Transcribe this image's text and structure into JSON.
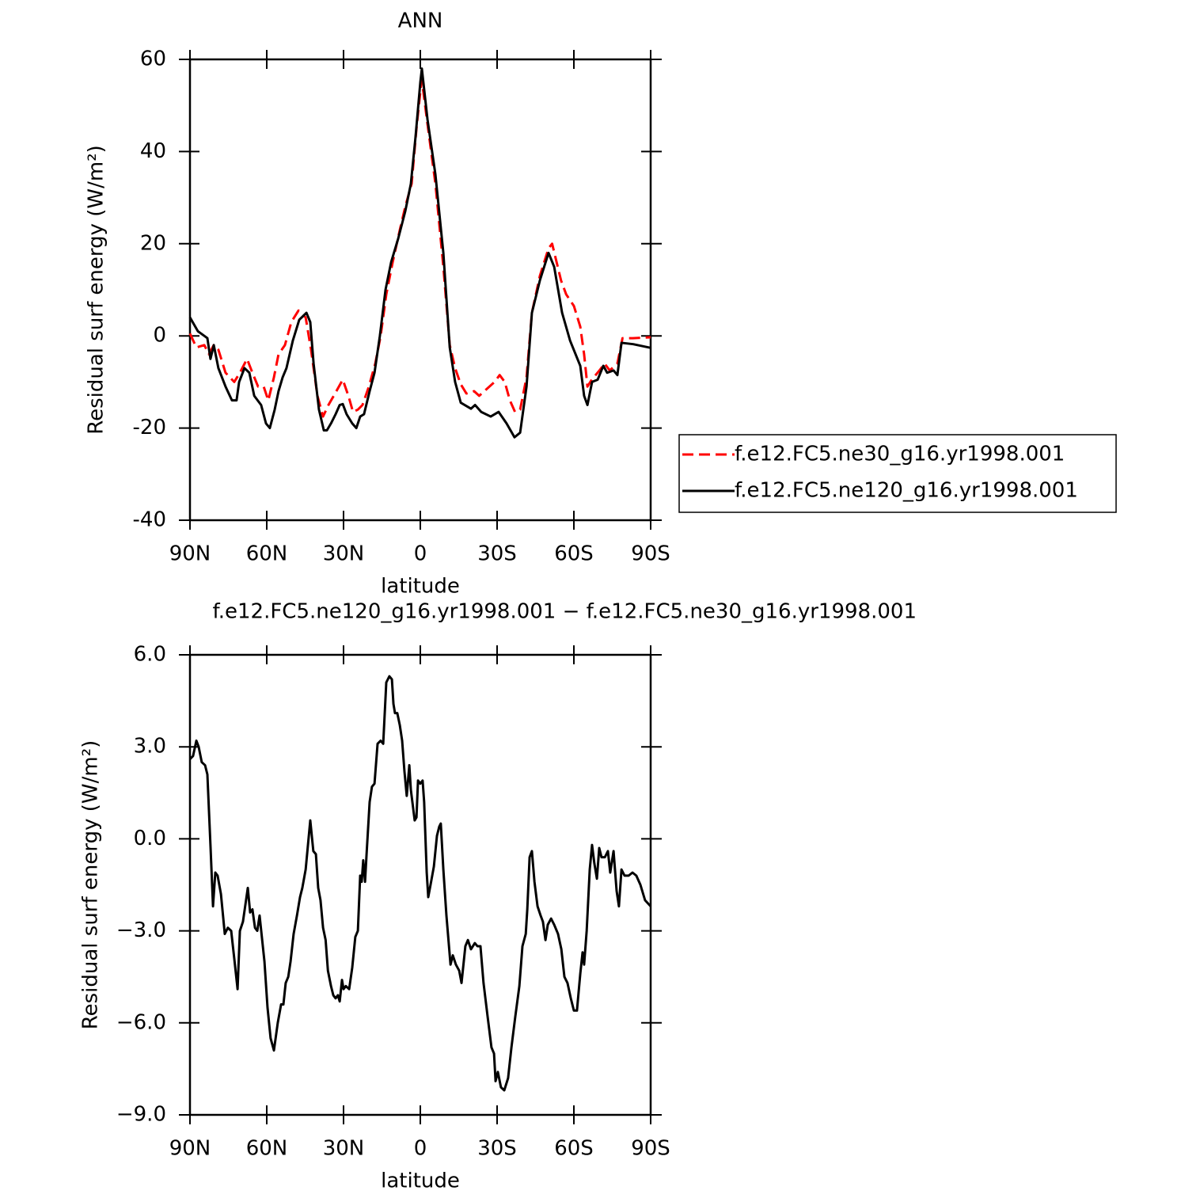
{
  "chart_data": [
    {
      "type": "line",
      "title": "ANN",
      "xlabel": "latitude",
      "ylabel": "Residual surf energy (W/m²)",
      "xlim": [
        90,
        -90
      ],
      "ylim": [
        -40,
        60
      ],
      "xticks": [
        {
          "value": 90,
          "label": "90N"
        },
        {
          "value": 60,
          "label": "60N"
        },
        {
          "value": 30,
          "label": "30N"
        },
        0,
        {
          "value": -30,
          "label": "30S"
        },
        {
          "value": -60,
          "label": "60S"
        },
        {
          "value": -90,
          "label": "90S"
        }
      ],
      "yticks": [
        -40,
        -20,
        0,
        20,
        40,
        60
      ],
      "legend": "right",
      "series": [
        {
          "name": "f.e12.FC5.ne30_g16.yr1998.001",
          "color": "#ff0000",
          "dash": "dashed",
          "x": [
            90,
            87.5,
            84.4,
            82.6,
            80.7,
            78.9,
            76.1,
            72.7,
            70.5,
            67.7,
            65.6,
            63.4,
            61.2,
            59.4,
            57.2,
            55.4,
            52.9,
            50.4,
            47.6,
            44.8,
            42.7,
            40.2,
            38,
            35.9,
            32.8,
            30.3,
            28.1,
            26.3,
            24.4,
            22.6,
            20.1,
            17.6,
            15.5,
            13.3,
            10.8,
            8,
            5.9,
            3.4,
            1.5,
            0,
            -0.6,
            -2.8,
            -5.9,
            -9,
            -11.5,
            -13.6,
            -15.8,
            -18,
            -21,
            -23,
            -26,
            -29,
            -31,
            -33,
            -35,
            -37,
            -39,
            -41.5,
            -43.6,
            -46.7,
            -50.1,
            -51.5,
            -55,
            -57,
            -60,
            -62.5,
            -64,
            -65.3,
            -67,
            -70,
            -72,
            -74,
            -77,
            -79,
            -83,
            -90
          ],
          "values": [
            0.5,
            -2.5,
            -2,
            -4,
            -2,
            -3,
            -8,
            -10,
            -8,
            -5,
            -8,
            -11,
            -11,
            -14,
            -9,
            -4,
            -2,
            3,
            5.5,
            4,
            -3,
            -13,
            -17.5,
            -15,
            -12,
            -9.5,
            -13,
            -16.5,
            -16,
            -15,
            -11,
            -6,
            0,
            9,
            16,
            23,
            28,
            33,
            45,
            53,
            55.5,
            46,
            33,
            15,
            -2,
            -7,
            -10.5,
            -12.5,
            -12,
            -13,
            -11.5,
            -10,
            -8.5,
            -10,
            -14,
            -16.5,
            -16,
            -9,
            5,
            13,
            19,
            20,
            12,
            9,
            6.5,
            2,
            -4,
            -11,
            -9.5,
            -7.5,
            -6,
            -7.5,
            -6,
            -0.5,
            -0.5,
            -0.3
          ]
        },
        {
          "name": "f.e12.FC5.ne120_g16.yr1998.001",
          "color": "#000000",
          "dash": "solid",
          "x": [
            90,
            86.9,
            84.4,
            83.2,
            82,
            80.7,
            78.9,
            76.1,
            73.6,
            71.8,
            70.8,
            68.7,
            66.8,
            64.9,
            62.2,
            60.3,
            58.8,
            56.9,
            55.4,
            53.8,
            52.3,
            49.8,
            47.3,
            44.5,
            43,
            41.7,
            39.6,
            37.7,
            36.5,
            34.9,
            33.1,
            31.5,
            30.3,
            28.8,
            26.6,
            25,
            23.5,
            22,
            19.8,
            17.9,
            15.8,
            13.6,
            11.4,
            8.7,
            5.9,
            3.7,
            1.9,
            0,
            -0.6,
            -2.8,
            -5.9,
            -9,
            -11.5,
            -13.6,
            -15.8,
            -19.8,
            -21.4,
            -23.8,
            -27.5,
            -30.6,
            -33.7,
            -36.8,
            -39,
            -41.5,
            -43.6,
            -46.7,
            -50.1,
            -52.3,
            -55.4,
            -58.5,
            -62.5,
            -64,
            -65.3,
            -67.1,
            -69.3,
            -71.5,
            -73,
            -75.5,
            -77,
            -78.6,
            -83.2,
            -90
          ],
          "values": [
            4,
            1,
            0,
            -0.5,
            -5,
            -2,
            -7,
            -11,
            -14,
            -14,
            -10,
            -7,
            -8,
            -13,
            -15,
            -19,
            -20,
            -16,
            -12,
            -9,
            -7,
            -1,
            3.5,
            5,
            3,
            -6,
            -16,
            -20.5,
            -20.5,
            -19,
            -17,
            -15,
            -14.8,
            -17,
            -19,
            -20,
            -17.5,
            -17,
            -12,
            -8,
            0,
            10,
            16,
            21,
            27,
            33,
            43,
            55,
            58,
            47,
            35,
            18,
            -2.5,
            -10,
            -14.5,
            -15.8,
            -15,
            -16.5,
            -17.5,
            -16.5,
            -19,
            -22,
            -21,
            -11,
            5,
            12,
            18,
            15,
            5,
            -1,
            -6.5,
            -13,
            -15,
            -10,
            -9.5,
            -6.5,
            -8,
            -7.5,
            -8.5,
            -1.5,
            -1.8,
            -2.6
          ]
        }
      ]
    },
    {
      "type": "line",
      "title": "f.e12.FC5.ne120_g16.yr1998.001 − f.e12.FC5.ne30_g16.yr1998.001",
      "xlabel": "latitude",
      "ylabel": "Residual surf energy (W/m²)",
      "xlim": [
        90,
        -90
      ],
      "ylim": [
        -9,
        6
      ],
      "xticks": [
        {
          "value": 90,
          "label": "90N"
        },
        {
          "value": 60,
          "label": "60N"
        },
        {
          "value": 30,
          "label": "30N"
        },
        0,
        {
          "value": -30,
          "label": "30S"
        },
        {
          "value": -60,
          "label": "60S"
        },
        {
          "value": -90,
          "label": "90S"
        }
      ],
      "yticks": [
        {
          "value": -9,
          "label": "−9.0"
        },
        {
          "value": -6,
          "label": "−6.0"
        },
        {
          "value": -3,
          "label": "−3.0"
        },
        {
          "value": 0,
          "label": "0.0"
        },
        {
          "value": 3,
          "label": "3.0"
        },
        {
          "value": 6,
          "label": "6.0"
        }
      ],
      "color": "#000000",
      "x": [
        90,
        88.8,
        87.5,
        86.6,
        85.4,
        84.1,
        83.2,
        82,
        81,
        80.1,
        79.2,
        77.9,
        76.4,
        75.2,
        73.9,
        72.7,
        71.4,
        70.5,
        69.3,
        67.4,
        66.5,
        65.6,
        64.6,
        63.7,
        62.8,
        60.9,
        59.7,
        58.5,
        57.2,
        55.7,
        54.4,
        53.5,
        52.6,
        51.6,
        50.7,
        49.5,
        48.2,
        47,
        46.1,
        44.8,
        43,
        41.8,
        40.8,
        39.9,
        39,
        38,
        37,
        36.1,
        34.9,
        34,
        33.1,
        32.2,
        31.5,
        30.6,
        30,
        29.1,
        27.8,
        26.6,
        25.4,
        24.4,
        23.5,
        22.9,
        22.3,
        21.6,
        21,
        19.8,
        18.9,
        17.9,
        16.7,
        15.5,
        14.5,
        13.9,
        13.3,
        12.1,
        11.1,
        10.5,
        9.9,
        9,
        8,
        7.1,
        6.2,
        5.3,
        4.3,
        3.7,
        2.8,
        2.2,
        1.5,
        0.9,
        0,
        -0.9,
        -1.5,
        -2.5,
        -3.1,
        -4,
        -5.3,
        -6.5,
        -7.4,
        -8,
        -9,
        -10.2,
        -11.8,
        -12.7,
        -13.9,
        -15.2,
        -16.1,
        -17.6,
        -18.6,
        -19.8,
        -21.3,
        -22.3,
        -23.5,
        -24.7,
        -26.3,
        -27.8,
        -28.8,
        -29.4,
        -30.3,
        -31.5,
        -32.8,
        -34.3,
        -35.6,
        -37.1,
        -38.7,
        -39.9,
        -41.2,
        -41.8,
        -42.7,
        -43.6,
        -44.6,
        -45.8,
        -47,
        -47.9,
        -48.9,
        -49.8,
        -51.1,
        -52.3,
        -53.8,
        -55.1,
        -56.3,
        -57.5,
        -58.8,
        -60,
        -61.2,
        -62.5,
        -63.4,
        -64,
        -65,
        -66.2,
        -67.1,
        -68,
        -69,
        -69.9,
        -70.8,
        -72.1,
        -73.3,
        -74.2,
        -75.5,
        -76.7,
        -77.6,
        -78.6,
        -79.8,
        -81.4,
        -82.9,
        -84.4,
        -86,
        -87.8,
        -90
      ],
      "values": [
        2.6,
        2.7,
        3.2,
        3,
        2.5,
        2.4,
        2.1,
        -0.2,
        -2.2,
        -1.1,
        -1.2,
        -1.8,
        -3.1,
        -2.9,
        -3,
        -3.9,
        -4.9,
        -3,
        -2.7,
        -1.6,
        -2.4,
        -2.3,
        -2.9,
        -3,
        -2.5,
        -4,
        -5.5,
        -6.5,
        -6.9,
        -6,
        -5.4,
        -5.4,
        -4.7,
        -4.5,
        -4,
        -3.1,
        -2.5,
        -1.9,
        -1.6,
        -1,
        0.6,
        -0.4,
        -0.5,
        -1.6,
        -2,
        -2.9,
        -3.3,
        -4.3,
        -4.8,
        -5.1,
        -5.2,
        -5.1,
        -5.3,
        -4.6,
        -4.9,
        -4.8,
        -4.9,
        -4.2,
        -3.2,
        -3,
        -1.2,
        -1.4,
        -0.7,
        -1.4,
        -0.5,
        1.2,
        1.7,
        1.8,
        3.1,
        3.2,
        3.1,
        4.1,
        5.1,
        5.3,
        5.2,
        4.4,
        4.1,
        4.1,
        3.7,
        3.2,
        2.2,
        1.4,
        2.4,
        1.6,
        1,
        0.6,
        0.7,
        1.9,
        1.8,
        1.9,
        1.2,
        -1.1,
        -1.9,
        -1.5,
        -0.9,
        0.1,
        0.4,
        0.5,
        -1,
        -2.5,
        -4.1,
        -3.8,
        -4.1,
        -4.3,
        -4.7,
        -3.5,
        -3.3,
        -3.6,
        -3.4,
        -3.5,
        -3.5,
        -4.7,
        -5.8,
        -6.8,
        -7,
        -7.9,
        -7.6,
        -8.1,
        -8.2,
        -7.8,
        -6.8,
        -5.8,
        -4.8,
        -3.5,
        -3.1,
        -2.3,
        -0.6,
        -0.4,
        -1.4,
        -2.2,
        -2.5,
        -2.7,
        -3.3,
        -2.8,
        -2.6,
        -2.8,
        -3.1,
        -3.6,
        -4.5,
        -4.7,
        -5.2,
        -5.6,
        -5.6,
        -4.4,
        -3.7,
        -4.1,
        -3,
        -1,
        -0.2,
        -0.8,
        -1.3,
        -0.3,
        -0.6,
        -0.6,
        -0.4,
        -1.1,
        -0.4,
        -1.7,
        -2.2,
        -1,
        -1.2,
        -1.2,
        -1.1,
        -1.2,
        -1.5,
        -2,
        -2.2
      ]
    }
  ]
}
